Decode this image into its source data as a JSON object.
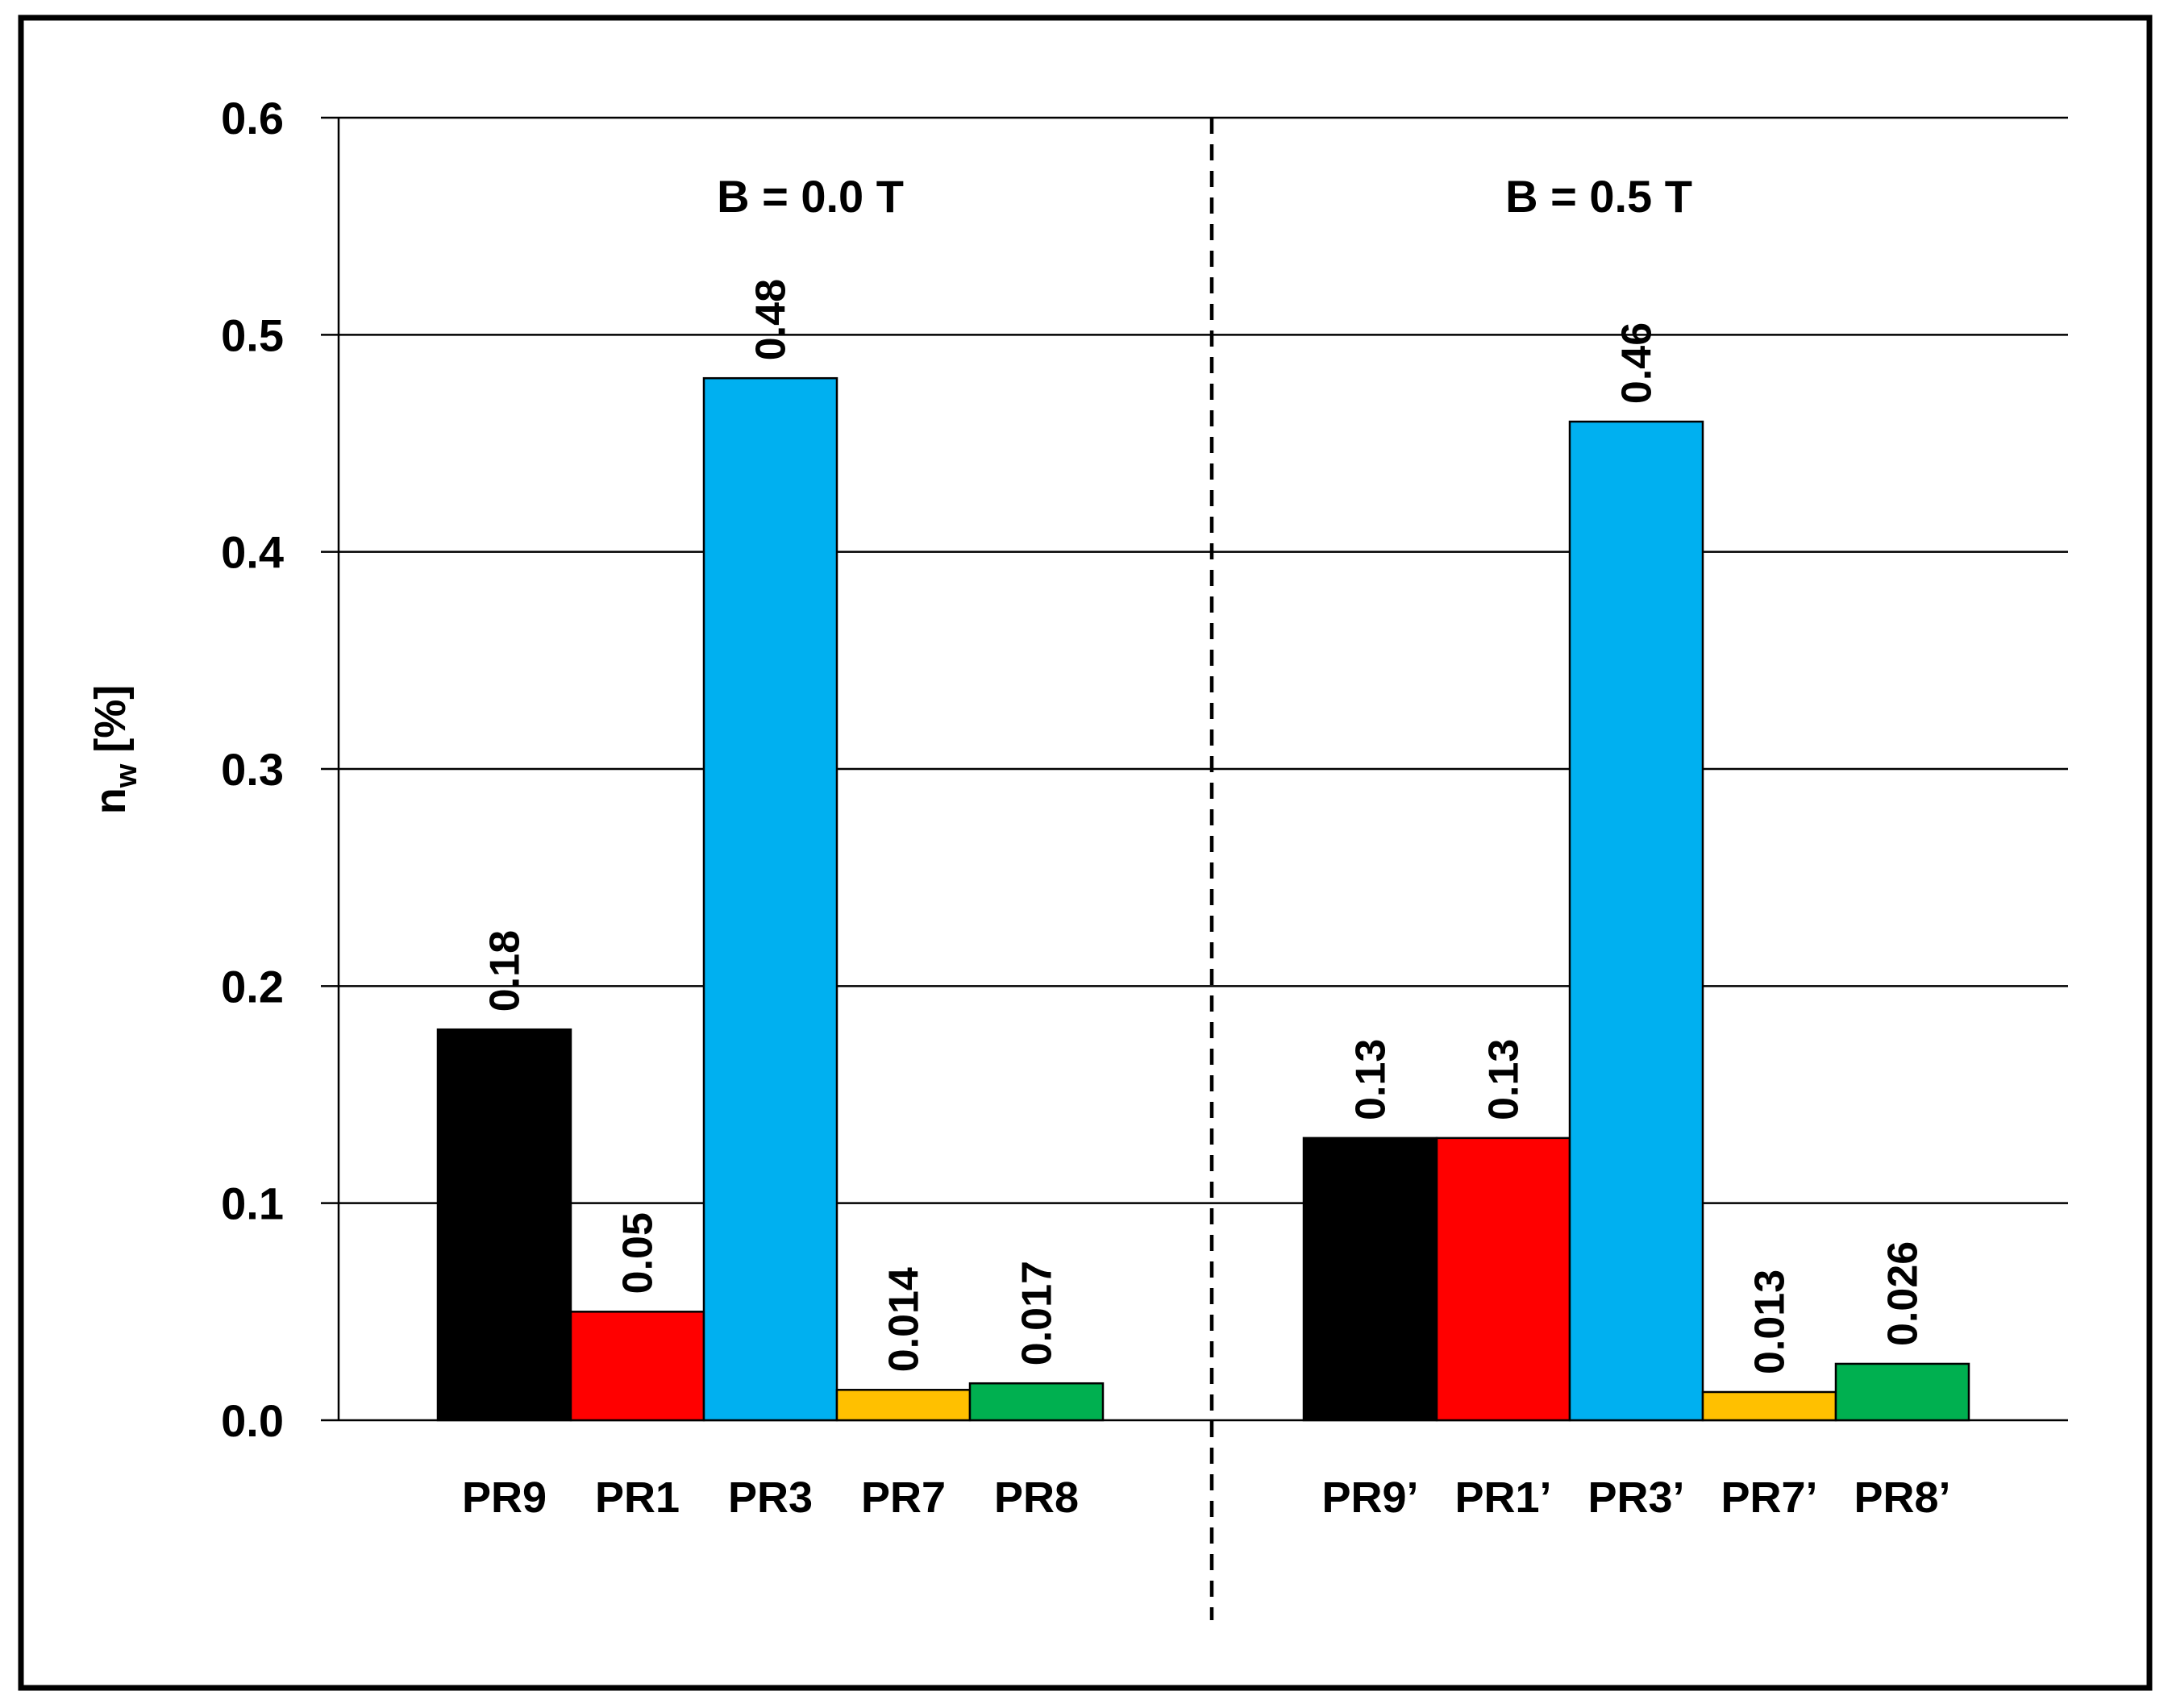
{
  "chart_data": {
    "type": "bar",
    "title": "",
    "xlabel": "",
    "ylabel": {
      "main": "n",
      "subscript": "w",
      "unit": "[%]"
    },
    "ylim": [
      0.0,
      0.6
    ],
    "yticks": [
      "0.0",
      "0.1",
      "0.2",
      "0.3",
      "0.4",
      "0.5",
      "0.6"
    ],
    "grid": true,
    "legend": "none",
    "groups": [
      {
        "label": "B = 0.0 T",
        "bars": [
          {
            "category": "PR9",
            "value": 0.18,
            "value_label": "0.18",
            "color": "#000000"
          },
          {
            "category": "PR1",
            "value": 0.05,
            "value_label": "0.05",
            "color": "#ff0000"
          },
          {
            "category": "PR3",
            "value": 0.48,
            "value_label": "0.48",
            "color": "#00b0f0"
          },
          {
            "category": "PR7",
            "value": 0.014,
            "value_label": "0.014",
            "color": "#ffc000"
          },
          {
            "category": "PR8",
            "value": 0.017,
            "value_label": "0.017",
            "color": "#00b050"
          }
        ]
      },
      {
        "label": "B = 0.5 T",
        "bars": [
          {
            "category": "PR9’",
            "value": 0.13,
            "value_label": "0.13",
            "color": "#000000"
          },
          {
            "category": "PR1’",
            "value": 0.13,
            "value_label": "0.13",
            "color": "#ff0000"
          },
          {
            "category": "PR3’",
            "value": 0.46,
            "value_label": "0.46",
            "color": "#00b0f0"
          },
          {
            "category": "PR7’",
            "value": 0.013,
            "value_label": "0.013",
            "color": "#ffc000"
          },
          {
            "category": "PR8’",
            "value": 0.026,
            "value_label": "0.026",
            "color": "#00b050"
          }
        ]
      }
    ]
  }
}
